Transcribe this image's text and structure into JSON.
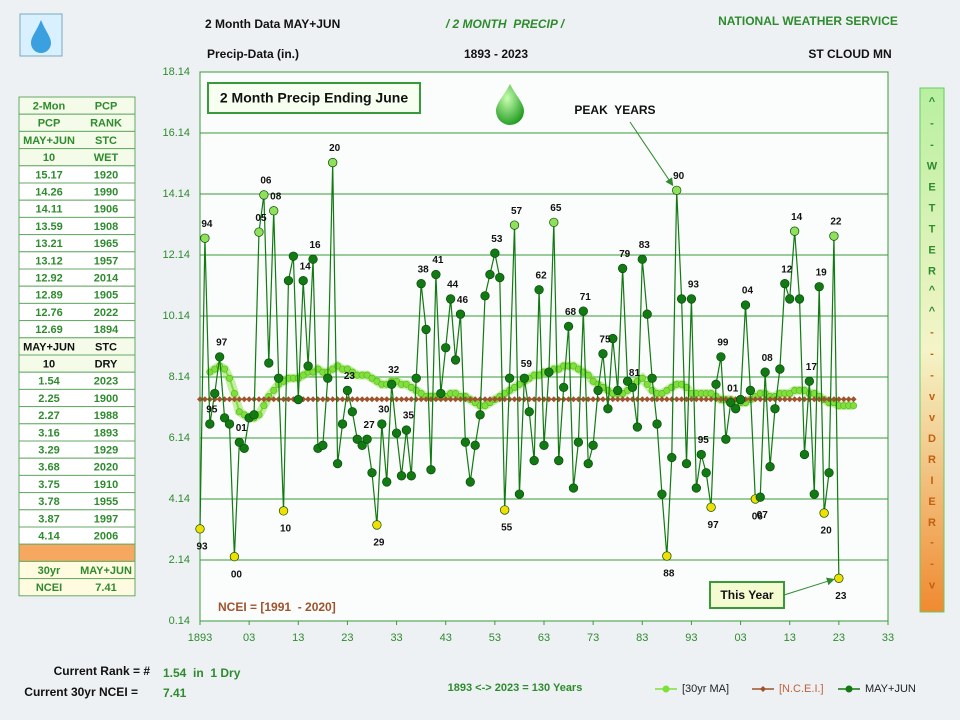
{
  "header": {
    "left_title": "2 Month Data MAY+JUN",
    "left_subtitle": "Precip-Data (in.)",
    "center_title": "/ 2 MONTH  PRECIP /",
    "center_subtitle": "1893 - 2023",
    "right_title": "NATIONAL WEATHER SERVICE",
    "right_subtitle": "ST CLOUD MN"
  },
  "side_table": {
    "wet_header": [
      [
        "2-Mon",
        "PCP"
      ],
      [
        "PCP",
        "RANK"
      ],
      [
        "MAY+JUN",
        "STC"
      ],
      [
        "10",
        "WET"
      ]
    ],
    "wet_rows": [
      [
        "15.17",
        "1920"
      ],
      [
        "14.26",
        "1990"
      ],
      [
        "14.11",
        "1906"
      ],
      [
        "13.59",
        "1908"
      ],
      [
        "13.21",
        "1965"
      ],
      [
        "13.12",
        "1957"
      ],
      [
        "12.92",
        "2014"
      ],
      [
        "12.89",
        "1905"
      ],
      [
        "12.76",
        "2022"
      ],
      [
        "12.69",
        "1894"
      ]
    ],
    "dry_header": [
      [
        "MAY+JUN",
        "STC"
      ],
      [
        "10",
        "DRY"
      ]
    ],
    "dry_rows": [
      [
        "1.54",
        "2023"
      ],
      [
        "2.25",
        "1900"
      ],
      [
        "2.27",
        "1988"
      ],
      [
        "3.16",
        "1893"
      ],
      [
        "3.29",
        "1929"
      ],
      [
        "3.68",
        "2020"
      ],
      [
        "3.75",
        "1910"
      ],
      [
        "3.78",
        "1955"
      ],
      [
        "3.87",
        "1997"
      ],
      [
        "4.14",
        "2006"
      ]
    ],
    "ncei_rows": [
      [
        "30yr",
        "MAY+JUN"
      ],
      [
        "NCEI",
        "7.41"
      ]
    ]
  },
  "right_bar": [
    "^",
    "-",
    "-",
    "WETTER",
    "^^",
    "-",
    "-",
    "-",
    "vv",
    "DRIER",
    "-",
    "-",
    "v"
  ],
  "footer": {
    "rank_label": "Current Rank = #",
    "rank_value": "1.54  in  1 Dry",
    "ncei_label": "Current 30yr NCEI =",
    "ncei_value": "7.41",
    "span": "1893 <-> 2023 = 130 Years"
  },
  "chart_data": {
    "type": "line",
    "title": "2 Month Precip Ending June",
    "note": "NCEI = [1991  - 2020]",
    "peak": {
      "text": "PEAK  YEARS",
      "x": 1990
    },
    "current": {
      "text": "This Year",
      "x": 2023
    },
    "xlim": [
      1893,
      2033
    ],
    "xticks": [
      {
        "value": 1893,
        "label": "1893"
      },
      {
        "value": 1903,
        "label": "03"
      },
      {
        "value": 1913,
        "label": "13"
      },
      {
        "value": 1923,
        "label": "23"
      },
      {
        "value": 1933,
        "label": "33"
      },
      {
        "value": 1943,
        "label": "43"
      },
      {
        "value": 1953,
        "label": "53"
      },
      {
        "value": 1963,
        "label": "63"
      },
      {
        "value": 1973,
        "label": "73"
      },
      {
        "value": 1983,
        "label": "83"
      },
      {
        "value": 1993,
        "label": "93"
      },
      {
        "value": 2003,
        "label": "03"
      },
      {
        "value": 2013,
        "label": "13"
      },
      {
        "value": 2023,
        "label": "23"
      },
      {
        "value": 2033,
        "label": "33"
      }
    ],
    "ylim": [
      0.14,
      18.14
    ],
    "yticks": [
      0.14,
      2.14,
      4.14,
      6.14,
      8.14,
      10.14,
      12.14,
      14.14,
      16.14,
      18.14
    ],
    "grid": true,
    "x": [
      1893,
      1894,
      1895,
      1896,
      1897,
      1898,
      1899,
      1900,
      1901,
      1902,
      1903,
      1904,
      1905,
      1906,
      1907,
      1908,
      1909,
      1910,
      1911,
      1912,
      1913,
      1914,
      1915,
      1916,
      1917,
      1918,
      1919,
      1920,
      1921,
      1922,
      1923,
      1924,
      1925,
      1926,
      1927,
      1928,
      1929,
      1930,
      1931,
      1932,
      1933,
      1934,
      1935,
      1936,
      1937,
      1938,
      1939,
      1940,
      1941,
      1942,
      1943,
      1944,
      1945,
      1946,
      1947,
      1948,
      1949,
      1950,
      1951,
      1952,
      1953,
      1954,
      1955,
      1956,
      1957,
      1958,
      1959,
      1960,
      1961,
      1962,
      1963,
      1964,
      1965,
      1966,
      1967,
      1968,
      1969,
      1970,
      1971,
      1972,
      1973,
      1974,
      1975,
      1976,
      1977,
      1978,
      1979,
      1980,
      1981,
      1982,
      1983,
      1984,
      1985,
      1986,
      1987,
      1988,
      1989,
      1990,
      1991,
      1992,
      1993,
      1994,
      1995,
      1996,
      1997,
      1998,
      1999,
      2000,
      2001,
      2002,
      2003,
      2004,
      2005,
      2006,
      2007,
      2008,
      2009,
      2010,
      2011,
      2012,
      2013,
      2014,
      2015,
      2016,
      2017,
      2018,
      2019,
      2020,
      2021,
      2022,
      2023,
      2024,
      2025,
      2026
    ],
    "series": [
      {
        "name": "[30yr MA]",
        "color": "#7ee03a",
        "values": [
          null,
          null,
          8.3,
          8.4,
          8.5,
          8.4,
          8.1,
          7.6,
          7.0,
          6.9,
          6.8,
          6.8,
          6.9,
          7.2,
          7.5,
          7.7,
          7.9,
          8.0,
          8.1,
          8.1,
          8.1,
          8.2,
          8.3,
          8.3,
          8.4,
          8.3,
          8.3,
          8.4,
          8.5,
          8.4,
          8.4,
          8.3,
          8.2,
          8.2,
          8.2,
          8.1,
          8.0,
          7.9,
          7.9,
          8.0,
          8.0,
          7.9,
          7.9,
          7.8,
          7.7,
          7.6,
          7.5,
          7.5,
          7.5,
          7.5,
          7.5,
          7.6,
          7.6,
          7.5,
          7.5,
          7.4,
          7.3,
          7.2,
          7.2,
          7.3,
          7.4,
          7.5,
          7.6,
          7.7,
          7.8,
          7.9,
          8.0,
          8.1,
          8.2,
          8.2,
          8.3,
          8.3,
          8.4,
          8.4,
          8.5,
          8.5,
          8.5,
          8.4,
          8.3,
          8.2,
          8.0,
          7.9,
          7.8,
          7.7,
          7.6,
          7.6,
          7.6,
          7.7,
          7.9,
          8.0,
          8.1,
          7.9,
          7.7,
          7.6,
          7.6,
          7.7,
          7.8,
          7.9,
          7.9,
          7.8,
          7.6,
          7.6,
          7.6,
          7.6,
          7.6,
          7.5,
          7.4,
          7.4,
          7.4,
          7.3,
          7.3,
          7.3,
          7.4,
          7.5,
          7.6,
          7.6,
          7.5,
          7.5,
          7.6,
          7.6,
          7.6,
          7.7,
          7.7,
          7.7,
          7.6,
          7.6,
          7.5,
          7.4,
          7.3,
          7.3,
          7.2,
          7.2,
          7.2,
          7.2
        ]
      },
      {
        "name": "[N.C.E.I.]",
        "color": "#a0522d",
        "y": 7.41
      },
      {
        "name": "MAY+JUN",
        "color": "#127a12",
        "values": [
          3.16,
          12.69,
          6.6,
          7.6,
          8.8,
          6.8,
          6.6,
          2.25,
          6.0,
          5.8,
          6.8,
          6.9,
          12.89,
          14.11,
          8.6,
          13.59,
          8.1,
          3.75,
          11.3,
          12.1,
          7.4,
          11.3,
          8.5,
          12.0,
          5.8,
          5.9,
          8.1,
          15.17,
          5.3,
          6.6,
          7.7,
          7.0,
          6.1,
          5.9,
          6.1,
          5.0,
          3.29,
          6.6,
          4.7,
          7.9,
          6.3,
          4.9,
          6.4,
          4.9,
          8.1,
          11.2,
          9.7,
          5.1,
          11.5,
          7.6,
          9.1,
          10.7,
          8.7,
          10.2,
          6.0,
          4.7,
          5.9,
          6.9,
          10.8,
          11.5,
          12.2,
          11.4,
          3.78,
          8.1,
          13.12,
          4.3,
          8.1,
          7.0,
          5.4,
          11.0,
          5.9,
          8.3,
          13.21,
          5.4,
          7.8,
          9.8,
          4.5,
          6.0,
          10.3,
          5.3,
          5.9,
          7.7,
          8.9,
          7.1,
          9.4,
          7.7,
          11.7,
          8.0,
          7.8,
          6.5,
          12.0,
          10.2,
          8.1,
          6.6,
          4.3,
          2.27,
          5.5,
          14.26,
          10.7,
          5.3,
          10.7,
          4.5,
          5.6,
          5.0,
          3.87,
          7.9,
          8.8,
          6.1,
          7.3,
          7.1,
          7.4,
          10.5,
          7.7,
          4.14,
          4.2,
          8.3,
          5.2,
          7.1,
          8.4,
          11.2,
          10.7,
          12.92,
          10.7,
          5.6,
          8.0,
          4.3,
          11.1,
          3.68,
          5.0,
          12.76,
          1.54,
          null,
          null,
          null
        ]
      }
    ],
    "annotations": [
      {
        "x": 1893,
        "label": "93",
        "color": "#f0e000"
      },
      {
        "x": 1894,
        "label": "94",
        "color": "#8fe05a"
      },
      {
        "x": 1895,
        "label": "95"
      },
      {
        "x": 1897,
        "label": "97"
      },
      {
        "x": 1900,
        "label": "00",
        "color": "#f0e000"
      },
      {
        "x": 1901,
        "label": "01"
      },
      {
        "x": 1905,
        "label": "05",
        "color": "#8fe05a"
      },
      {
        "x": 1906,
        "label": "06",
        "color": "#8fe05a"
      },
      {
        "x": 1908,
        "label": "08",
        "color": "#8fe05a"
      },
      {
        "x": 1910,
        "label": "10",
        "color": "#f0e000"
      },
      {
        "x": 1914,
        "label": "14"
      },
      {
        "x": 1916,
        "label": "16"
      },
      {
        "x": 1920,
        "label": "20",
        "color": "#8fe05a"
      },
      {
        "x": 1923,
        "label": "23"
      },
      {
        "x": 1927,
        "label": "27"
      },
      {
        "x": 1929,
        "label": "29",
        "color": "#f0e000"
      },
      {
        "x": 1930,
        "label": "30"
      },
      {
        "x": 1932,
        "label": "32"
      },
      {
        "x": 1935,
        "label": "35"
      },
      {
        "x": 1938,
        "label": "38"
      },
      {
        "x": 1941,
        "label": "41"
      },
      {
        "x": 1944,
        "label": "44"
      },
      {
        "x": 1946,
        "label": "46"
      },
      {
        "x": 1953,
        "label": "53"
      },
      {
        "x": 1955,
        "label": "55",
        "color": "#f0e000"
      },
      {
        "x": 1957,
        "label": "57",
        "color": "#8fe05a"
      },
      {
        "x": 1959,
        "label": "59"
      },
      {
        "x": 1962,
        "label": "62"
      },
      {
        "x": 1965,
        "label": "65",
        "color": "#8fe05a"
      },
      {
        "x": 1968,
        "label": "68"
      },
      {
        "x": 1971,
        "label": "71"
      },
      {
        "x": 1975,
        "label": "75"
      },
      {
        "x": 1979,
        "label": "79"
      },
      {
        "x": 1981,
        "label": "81"
      },
      {
        "x": 1983,
        "label": "83"
      },
      {
        "x": 1988,
        "label": "88",
        "color": "#f0e000"
      },
      {
        "x": 1990,
        "label": "90",
        "color": "#8fe05a"
      },
      {
        "x": 1993,
        "label": "93"
      },
      {
        "x": 1995,
        "label": "95"
      },
      {
        "x": 1997,
        "label": "97",
        "color": "#f0e000"
      },
      {
        "x": 1999,
        "label": "99"
      },
      {
        "x": 2001,
        "label": "01"
      },
      {
        "x": 2004,
        "label": "04"
      },
      {
        "x": 2006,
        "label": "06",
        "color": "#f0e000"
      },
      {
        "x": 2007,
        "label": "07"
      },
      {
        "x": 2008,
        "label": "08"
      },
      {
        "x": 2012,
        "label": "12"
      },
      {
        "x": 2014,
        "label": "14",
        "color": "#8fe05a"
      },
      {
        "x": 2017,
        "label": "17"
      },
      {
        "x": 2019,
        "label": "19"
      },
      {
        "x": 2020,
        "label": "20",
        "color": "#f0e000"
      },
      {
        "x": 2022,
        "label": "22",
        "color": "#8fe05a"
      },
      {
        "x": 2023,
        "label": "23",
        "color": "#f0e000"
      }
    ]
  }
}
